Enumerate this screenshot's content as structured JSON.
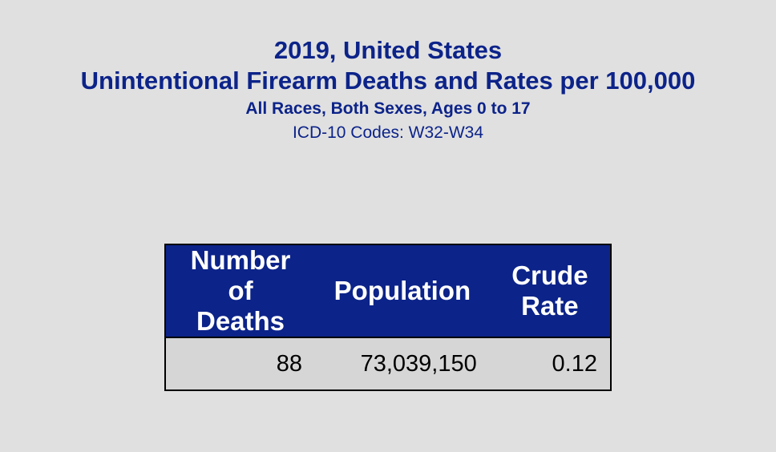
{
  "header": {
    "year_location": "2019, United States",
    "title": "Unintentional Firearm Deaths and Rates per 100,000",
    "subtitle": "All Races, Both Sexes, Ages 0 to 17",
    "codes": "ICD-10 Codes: W32-W34"
  },
  "table": {
    "columns": [
      {
        "line1": "Number of",
        "line2": "Deaths"
      },
      {
        "line1": "Population",
        "line2": ""
      },
      {
        "line1": "Crude",
        "line2": "Rate"
      }
    ],
    "row": {
      "deaths": "88",
      "population": "73,039,150",
      "crude_rate": "0.12"
    }
  },
  "colors": {
    "header_blue": "#0c2389",
    "background": "#e0e0e0",
    "row_background": "#d6d6d6"
  }
}
